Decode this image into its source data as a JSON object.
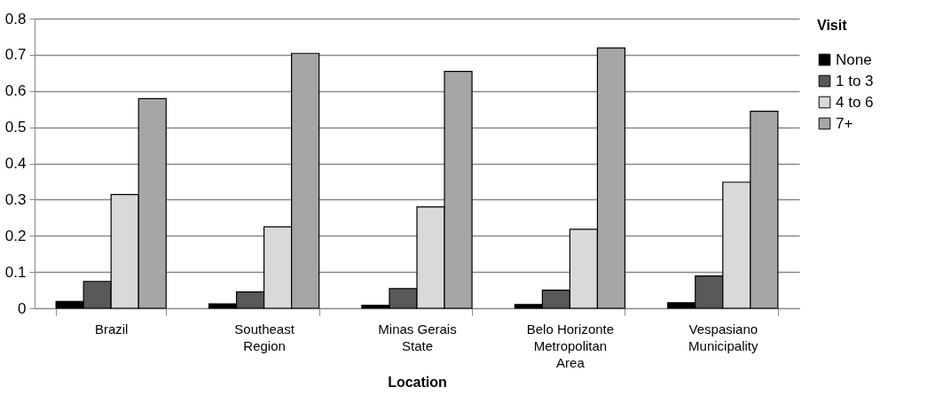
{
  "chart_data": {
    "type": "bar",
    "xlabel": "Location",
    "legend_title": "Visit",
    "categories": [
      "Brazil",
      "Southeast Region",
      "Minas Gerais State",
      "Belo Horizonte Metropolitan Area",
      "Vespasiano Municipality"
    ],
    "series": [
      {
        "name": "None",
        "color": "#000000",
        "values": [
          0.019,
          0.012,
          0.008,
          0.01,
          0.015
        ]
      },
      {
        "name": "1 to 3",
        "color": "#595959",
        "values": [
          0.074,
          0.045,
          0.054,
          0.05,
          0.089
        ]
      },
      {
        "name": "4 to 6",
        "color": "#d9d9d9",
        "values": [
          0.314,
          0.225,
          0.28,
          0.218,
          0.348
        ]
      },
      {
        "name": "7+",
        "color": "#a6a6a6",
        "values": [
          0.579,
          0.704,
          0.654,
          0.719,
          0.544
        ]
      }
    ],
    "ylim": [
      0,
      0.8
    ],
    "yticks": [
      0,
      0.1,
      0.2,
      0.3,
      0.4,
      0.5,
      0.6,
      0.7,
      0.8
    ],
    "grid": "y",
    "legend": "right"
  }
}
